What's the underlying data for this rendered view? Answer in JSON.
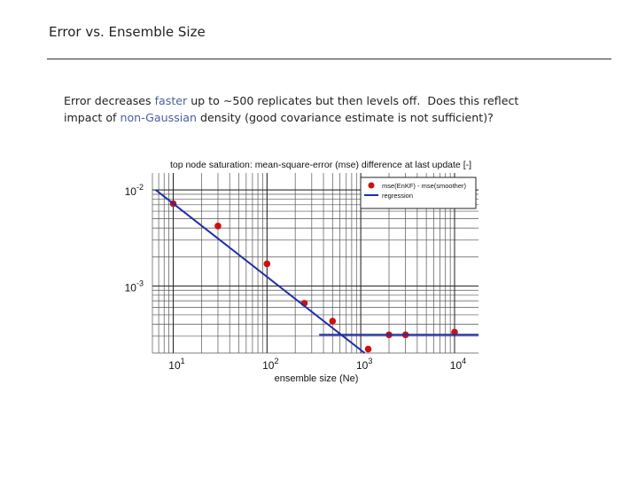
{
  "slide": {
    "title": "Error vs. Ensemble Size",
    "body": [
      [
        {
          "text": "Error decreases "
        },
        {
          "text": "faster",
          "color": "#4a5fa0"
        },
        {
          "text": " up to ∼500 replicates but then levels off.  Does this reflect"
        }
      ],
      [
        {
          "text": "impact of "
        },
        {
          "text": "non-Gaussian",
          "color": "#4a5fa0"
        },
        {
          "text": " density (good covariance estimate is not sufficient)?"
        }
      ]
    ]
  },
  "chart_data": {
    "type": "scatter",
    "title": "top node saturation: mean-square-error (mse) difference at last update  [-]",
    "x_label": "ensemble size (Ne)",
    "x_log": true,
    "y_log": true,
    "grid": true,
    "minor_grid": true,
    "legend": "upper right",
    "xlim": [
      6,
      18000
    ],
    "ylim": [
      0.0002,
      0.015
    ],
    "xticks": [
      {
        "value": 10,
        "label": "10",
        "exponent": "1"
      },
      {
        "value": 100,
        "label": "10",
        "exponent": "2"
      },
      {
        "value": 1000,
        "label": "10",
        "exponent": "3"
      },
      {
        "value": 10000,
        "label": "10",
        "exponent": "4"
      }
    ],
    "yticks": [
      {
        "value": 0.01,
        "label": "10",
        "exponent": "-2"
      },
      {
        "value": 0.001,
        "label": "10",
        "exponent": "-3"
      }
    ],
    "series": [
      {
        "name": "mse(EnKF) - mse(smoother)",
        "kind": "marker",
        "color": "#cc1111",
        "x": [
          10,
          30,
          100,
          250,
          500,
          1200,
          2000,
          3000,
          10000
        ],
        "values": [
          0.0072,
          0.0042,
          0.0017,
          0.00066,
          0.00043,
          0.00022,
          0.00031,
          0.00031,
          0.00033
        ]
      },
      {
        "name": "regression",
        "kind": "line",
        "color": "#1f2fa8",
        "x": [
          6.5,
          1100,
          null,
          360,
          18000
        ],
        "values": [
          0.01,
          0.0002,
          null,
          0.00031,
          0.00031
        ]
      }
    ]
  }
}
